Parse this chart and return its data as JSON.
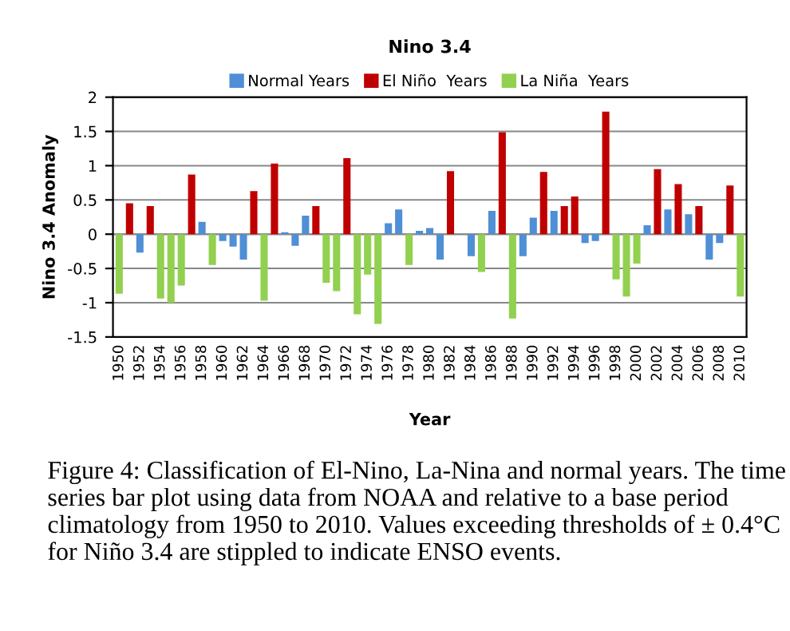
{
  "chart_data": {
    "type": "bar",
    "title": "Nino 3.4",
    "xlabel": "Year",
    "ylabel": "Nino 3.4 Anomaly",
    "categories": [
      "1950",
      null,
      "1952",
      null,
      "1954",
      null,
      "1956",
      null,
      "1958",
      null,
      "1960",
      null,
      "1962",
      null,
      "1964",
      null,
      "1966",
      null,
      "1968",
      null,
      "1970",
      null,
      "1972",
      null,
      "1974",
      null,
      "1976",
      null,
      "1978",
      null,
      "1980",
      null,
      "1982",
      null,
      "1984",
      null,
      "1986",
      null,
      "1988",
      null,
      "1990",
      null,
      "1992",
      null,
      "1994",
      null,
      "1996",
      null,
      "1998",
      null,
      "2000",
      null,
      "2002",
      null,
      "2004",
      null,
      "2006",
      null,
      "2008",
      null,
      "2010"
    ],
    "series": [
      {
        "name": "Normal Years",
        "color": "#4f8fd6",
        "values": [
          null,
          null,
          -0.27,
          null,
          null,
          null,
          null,
          null,
          0.18,
          null,
          -0.1,
          -0.18,
          -0.37,
          null,
          null,
          null,
          0.03,
          -0.17,
          0.27,
          null,
          null,
          null,
          null,
          null,
          null,
          null,
          0.16,
          0.36,
          null,
          0.05,
          0.09,
          -0.37,
          null,
          null,
          -0.32,
          null,
          0.34,
          null,
          null,
          -0.32,
          0.24,
          null,
          0.34,
          null,
          null,
          -0.13,
          -0.1,
          null,
          null,
          null,
          null,
          0.13,
          null,
          0.36,
          null,
          0.29,
          null,
          -0.37,
          -0.13,
          null,
          null
        ]
      },
      {
        "name": "El Niño  Years",
        "color": "#c00000",
        "values": [
          null,
          0.45,
          null,
          0.41,
          null,
          null,
          null,
          0.87,
          null,
          null,
          null,
          null,
          null,
          0.63,
          null,
          1.03,
          null,
          null,
          null,
          0.41,
          null,
          null,
          1.11,
          null,
          null,
          null,
          null,
          null,
          null,
          null,
          null,
          null,
          0.92,
          null,
          null,
          null,
          null,
          1.49,
          null,
          null,
          null,
          0.91,
          null,
          0.41,
          0.55,
          null,
          null,
          1.79,
          null,
          null,
          null,
          null,
          0.95,
          null,
          0.73,
          null,
          0.41,
          null,
          null,
          0.71,
          null
        ]
      },
      {
        "name": "La Niña  Years",
        "color": "#92d050",
        "values": [
          -0.87,
          null,
          null,
          null,
          -0.94,
          -1.0,
          -0.75,
          null,
          null,
          -0.45,
          null,
          null,
          null,
          null,
          -0.97,
          null,
          null,
          null,
          null,
          null,
          -0.71,
          -0.83,
          null,
          -1.17,
          -0.59,
          -1.31,
          null,
          null,
          -0.45,
          null,
          null,
          null,
          null,
          null,
          null,
          -0.55,
          null,
          null,
          -1.23,
          null,
          null,
          null,
          null,
          null,
          null,
          null,
          null,
          null,
          -0.66,
          -0.91,
          -0.43,
          null,
          null,
          null,
          null,
          null,
          null,
          null,
          null,
          null,
          -0.91
        ]
      }
    ],
    "ylim": [
      -1.5,
      2
    ],
    "yticks": [
      -1.5,
      -1,
      -0.5,
      0,
      0.5,
      1,
      1.5,
      2
    ],
    "grid": "y",
    "legend": "top",
    "annotations": [
      "Figure 4: Classification of El-Nino, La-Nina and normal years. The time series bar plot using data from NOAA and relative to a base period climatology from 1950 to 2010. Values exceeding thresholds of ± 0.4°C for Niño 3.4 are stippled to indicate ENSO events."
    ]
  }
}
